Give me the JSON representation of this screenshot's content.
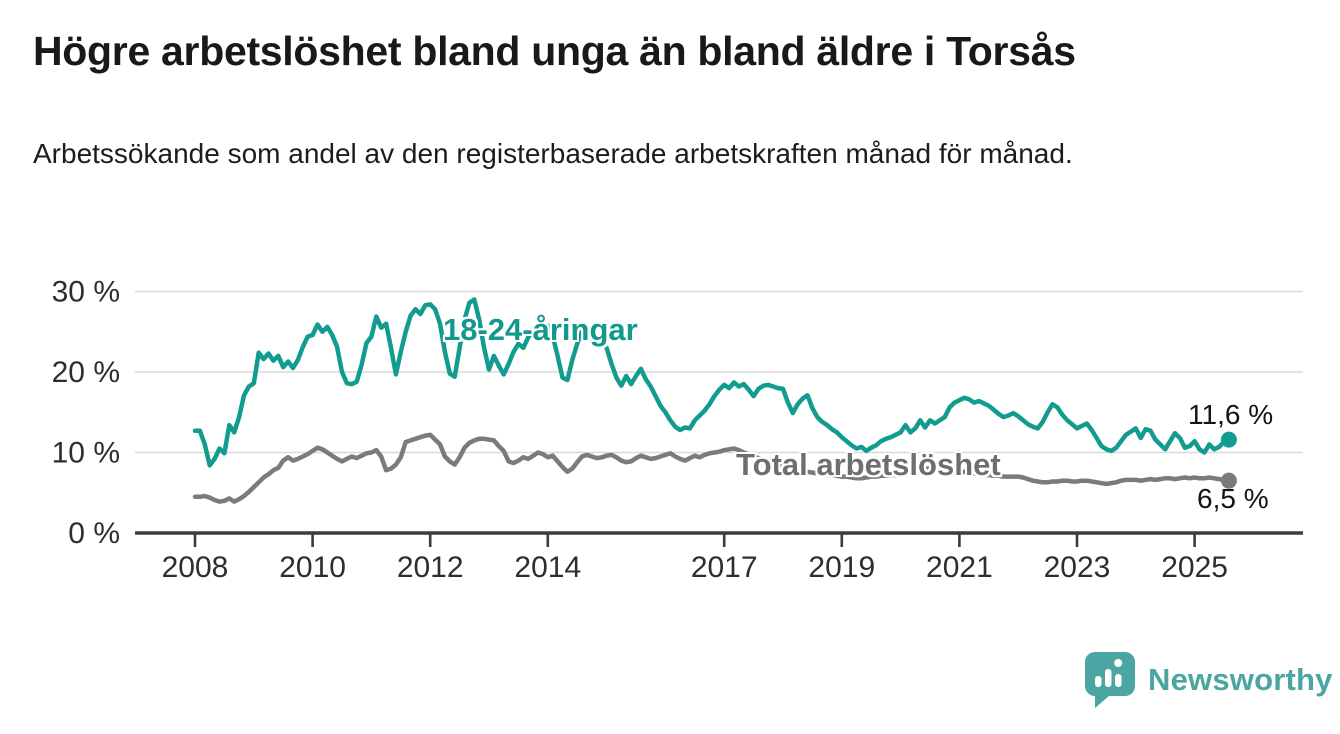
{
  "header": {
    "title": "Högre arbetslöshet bland unga än bland äldre i Torsås",
    "subtitle": "Arbetssökande som andel av den registerbaserade arbetskraften månad för månad."
  },
  "chart_data": {
    "type": "line",
    "unit": "%",
    "frequency": "monthly",
    "x_start": "2008-01",
    "x_end": "2025-08",
    "x_start_year": 2008.0,
    "grid": true,
    "ylim": [
      0,
      31
    ],
    "y_ticks": [
      {
        "v": 0,
        "label": "0 %"
      },
      {
        "v": 10,
        "label": "10 %"
      },
      {
        "v": 20,
        "label": "20 %"
      },
      {
        "v": 30,
        "label": "30 %"
      }
    ],
    "x_ticks": [
      {
        "v": 2008,
        "label": "2008"
      },
      {
        "v": 2010,
        "label": "2010"
      },
      {
        "v": 2012,
        "label": "2012"
      },
      {
        "v": 2014,
        "label": "2014"
      },
      {
        "v": 2017,
        "label": "2017"
      },
      {
        "v": 2019,
        "label": "2019"
      },
      {
        "v": 2021,
        "label": "2021"
      },
      {
        "v": 2023,
        "label": "2023"
      },
      {
        "v": 2025,
        "label": "2025"
      }
    ],
    "series": [
      {
        "name": "18-24-åringar",
        "color": "#129c90",
        "end_label": "11,6 %",
        "end_value": 11.6,
        "values": [
          12.7,
          12.7,
          11.0,
          8.4,
          9.2,
          10.5,
          9.9,
          13.4,
          12.5,
          14.4,
          17.1,
          18.2,
          18.6,
          22.4,
          21.6,
          22.3,
          21.4,
          22.0,
          20.6,
          21.3,
          20.5,
          21.5,
          23.1,
          24.4,
          24.6,
          25.9,
          25.0,
          25.6,
          24.6,
          23.1,
          20.0,
          18.6,
          18.5,
          18.8,
          20.9,
          23.6,
          24.4,
          26.9,
          25.5,
          26.0,
          23.0,
          19.7,
          22.5,
          25.0,
          27.0,
          27.8,
          27.2,
          28.3,
          28.4,
          27.8,
          26.0,
          22.5,
          19.8,
          19.4,
          23.0,
          26.5,
          28.6,
          29.0,
          26.5,
          23.0,
          20.3,
          22.0,
          20.8,
          19.7,
          21.0,
          22.5,
          23.5,
          23.0,
          24.3,
          25.2,
          25.8,
          25.4,
          25.8,
          24.5,
          22.0,
          19.3,
          19.0,
          21.5,
          23.5,
          25.3,
          25.0,
          24.6,
          24.2,
          23.8,
          23.0,
          21.0,
          19.3,
          18.3,
          19.5,
          18.5,
          19.5,
          20.4,
          19.1,
          18.2,
          17.0,
          15.8,
          15.0,
          14.0,
          13.2,
          12.8,
          13.1,
          13.0,
          14.0,
          14.6,
          15.2,
          16.0,
          17.0,
          17.8,
          18.4,
          18.0,
          18.7,
          18.2,
          18.5,
          17.8,
          17.0,
          17.9,
          18.3,
          18.4,
          18.2,
          18.0,
          17.9,
          16.2,
          14.9,
          16.0,
          16.7,
          17.1,
          15.5,
          14.4,
          13.8,
          13.4,
          12.9,
          12.5,
          11.9,
          11.4,
          10.9,
          10.5,
          10.7,
          10.2,
          10.6,
          10.9,
          11.4,
          11.7,
          11.9,
          12.2,
          12.5,
          13.4,
          12.5,
          13.0,
          14.0,
          13.1,
          14.0,
          13.6,
          14.0,
          14.4,
          15.6,
          16.2,
          16.5,
          16.8,
          16.6,
          16.2,
          16.4,
          16.1,
          15.8,
          15.3,
          14.8,
          14.4,
          14.6,
          14.9,
          14.5,
          14.0,
          13.5,
          13.2,
          13.0,
          13.8,
          15.0,
          16.0,
          15.6,
          14.7,
          14.0,
          13.5,
          13.0,
          13.3,
          13.6,
          12.8,
          11.8,
          10.8,
          10.4,
          10.2,
          10.6,
          11.4,
          12.2,
          12.6,
          13.0,
          11.8,
          12.9,
          12.7,
          11.6,
          11.0,
          10.4,
          11.4,
          12.4,
          11.8,
          10.6,
          10.8,
          11.4,
          10.4,
          10.0,
          11.0,
          10.4,
          10.7,
          11.3,
          11.6
        ]
      },
      {
        "name": "Total arbetslöshet",
        "color": "#7b7b7b",
        "end_label": "6,5 %",
        "end_value": 6.5,
        "values": [
          4.5,
          4.5,
          4.6,
          4.4,
          4.1,
          3.9,
          4.0,
          4.3,
          3.9,
          4.2,
          4.6,
          5.1,
          5.7,
          6.3,
          6.9,
          7.3,
          7.8,
          8.1,
          9.0,
          9.4,
          9.0,
          9.2,
          9.5,
          9.8,
          10.2,
          10.6,
          10.4,
          10.0,
          9.6,
          9.2,
          8.9,
          9.2,
          9.5,
          9.3,
          9.6,
          9.9,
          10.0,
          10.3,
          9.5,
          7.8,
          8.0,
          8.5,
          9.4,
          11.3,
          11.5,
          11.7,
          11.9,
          12.1,
          12.2,
          11.6,
          11.0,
          9.5,
          8.9,
          8.5,
          9.4,
          10.6,
          11.2,
          11.5,
          11.7,
          11.7,
          11.6,
          11.5,
          10.8,
          10.2,
          8.9,
          8.7,
          9.0,
          9.4,
          9.2,
          9.6,
          10.0,
          9.8,
          9.4,
          9.6,
          8.9,
          8.2,
          7.6,
          8.0,
          8.8,
          9.5,
          9.7,
          9.5,
          9.3,
          9.4,
          9.6,
          9.7,
          9.4,
          9.0,
          8.8,
          8.9,
          9.3,
          9.6,
          9.4,
          9.2,
          9.3,
          9.5,
          9.7,
          9.9,
          9.5,
          9.2,
          9.0,
          9.3,
          9.6,
          9.4,
          9.7,
          9.9,
          10.0,
          10.1,
          10.3,
          10.4,
          10.5,
          10.3,
          10.0,
          9.8,
          9.5,
          9.3,
          9.0,
          8.8,
          8.7,
          8.6,
          8.4,
          8.2,
          8.0,
          7.8,
          7.7,
          7.6,
          7.5,
          7.4,
          7.3,
          7.2,
          7.2,
          7.1,
          7.0,
          7.0,
          6.9,
          6.8,
          6.8,
          6.9,
          7.0,
          7.0,
          7.1,
          7.1,
          7.2,
          7.2,
          7.3,
          7.4,
          7.6,
          7.8,
          7.9,
          8.0,
          8.0,
          7.9,
          7.8,
          7.7,
          7.6,
          7.5,
          7.5,
          7.6,
          7.5,
          7.4,
          7.3,
          7.2,
          7.2,
          7.1,
          7.1,
          7.0,
          7.0,
          7.0,
          7.0,
          6.9,
          6.7,
          6.5,
          6.4,
          6.3,
          6.3,
          6.4,
          6.4,
          6.5,
          6.5,
          6.4,
          6.4,
          6.5,
          6.5,
          6.4,
          6.3,
          6.2,
          6.1,
          6.2,
          6.3,
          6.5,
          6.6,
          6.6,
          6.6,
          6.5,
          6.6,
          6.7,
          6.6,
          6.7,
          6.8,
          6.8,
          6.7,
          6.8,
          6.9,
          6.8,
          6.9,
          6.8,
          6.8,
          6.9,
          6.8,
          6.7,
          6.6,
          6.5
        ]
      }
    ],
    "colors": {
      "grid": "#d9d9d9",
      "axis": "#3c3c3c",
      "tick_text": "#2e2e2e"
    }
  },
  "footer": {
    "brand": "Newsworthy",
    "logo_color": "#4ba5a2"
  }
}
